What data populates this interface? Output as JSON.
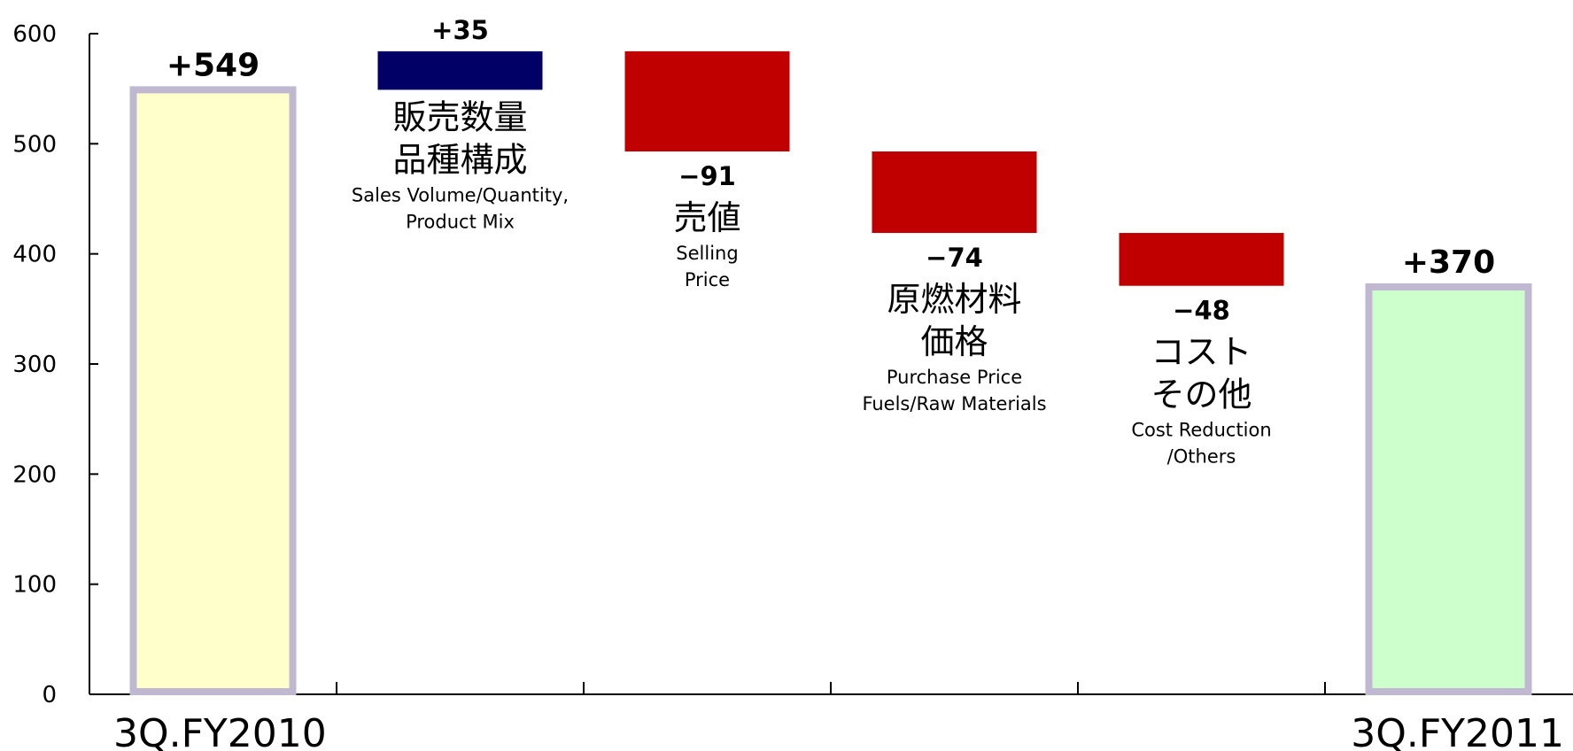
{
  "chart_data": {
    "type": "bar",
    "subtype": "waterfall",
    "title": "",
    "xlabel": "",
    "ylabel": "",
    "ylim": [
      0,
      600
    ],
    "yticks": [
      "0",
      "100",
      "200",
      "300",
      "400",
      "500",
      "600"
    ],
    "grid": false,
    "legend": "none",
    "start": {
      "category": "3Q.FY2010",
      "label": "+549",
      "value": 549,
      "fill": "#FFFFCC",
      "border": "#C0B8D0"
    },
    "steps": [
      {
        "label": "+35",
        "value": 35,
        "jp": [
          "販売数量",
          "品種構成"
        ],
        "en": [
          "Sales Volume/Quantity,",
          "Product Mix"
        ],
        "color": "#000066"
      },
      {
        "label": "−91",
        "value": -91,
        "jp": [
          "売値"
        ],
        "en": [
          "Selling",
          "Price"
        ],
        "color": "#C00000"
      },
      {
        "label": "−74",
        "value": -74,
        "jp": [
          "原燃材料",
          "価格"
        ],
        "en": [
          "Purchase Price",
          "Fuels/Raw Materials"
        ],
        "color": "#C00000"
      },
      {
        "label": "−48",
        "value": -48,
        "jp": [
          "コスト",
          "その他"
        ],
        "en": [
          "Cost Reduction",
          "/Others"
        ],
        "color": "#C00000"
      }
    ],
    "end": {
      "category": "3Q.FY2011",
      "label": "+370",
      "value": 370,
      "fill": "#CCFFCC",
      "border": "#C0B8D0"
    }
  }
}
